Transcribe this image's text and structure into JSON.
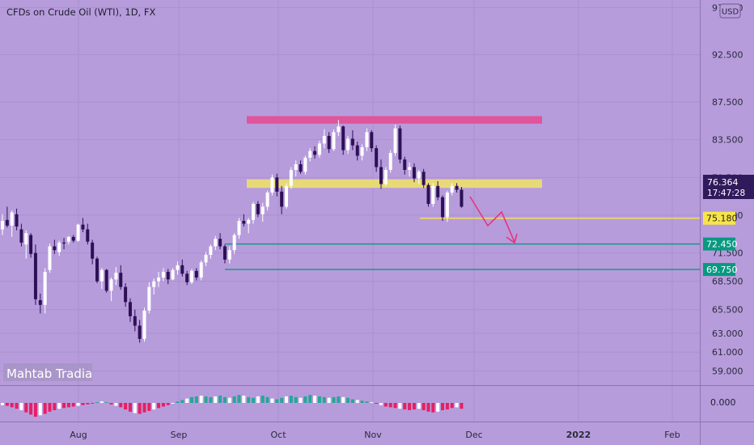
{
  "chart_data": {
    "type": "candlestick",
    "title": "CFDs on Crude Oil (WTI), 1D, FX",
    "currency": "USD",
    "watermark": "Mahtab Tradia",
    "ylim": [
      57.5,
      98.3
    ],
    "y_ticks": [
      "97.500",
      "92.500",
      "87.500",
      "83.500",
      "79.500",
      "75.500",
      "71.500",
      "68.500",
      "65.500",
      "63.000",
      "61.000",
      "59.000"
    ],
    "x_ticks": [
      "Aug",
      "Sep",
      "Oct",
      "Nov",
      "Dec",
      "2022",
      "Feb"
    ],
    "price_label": {
      "value": "76.364",
      "countdown": "17:47:28"
    },
    "levels": [
      {
        "value": "75.180",
        "color": "#f7e547"
      },
      {
        "value": "72.450",
        "color": "#089981"
      },
      {
        "value": "69.750",
        "color": "#089981"
      }
    ],
    "zones": [
      {
        "from": 85.2,
        "to": 86.0,
        "color": "#e0549a"
      },
      {
        "from": 78.4,
        "to": 79.3,
        "color": "#e8d978"
      }
    ],
    "candles": [
      [
        74.0,
        75.6,
        73.4,
        74.9
      ],
      [
        75.0,
        76.4,
        74.2,
        74.4
      ],
      [
        74.4,
        76.0,
        73.2,
        75.8
      ],
      [
        75.6,
        76.2,
        73.9,
        74.3
      ],
      [
        74.0,
        74.6,
        72.2,
        72.6
      ],
      [
        72.4,
        73.9,
        70.9,
        73.6
      ],
      [
        73.4,
        73.6,
        71.0,
        71.4
      ],
      [
        71.5,
        72.4,
        66.0,
        66.6
      ],
      [
        66.5,
        67.2,
        65.1,
        66.0
      ],
      [
        66.0,
        69.9,
        65.1,
        69.5
      ],
      [
        69.7,
        72.5,
        69.4,
        72.2
      ],
      [
        72.2,
        72.9,
        71.4,
        71.8
      ],
      [
        71.6,
        72.8,
        71.2,
        72.6
      ],
      [
        72.6,
        73.1,
        71.9,
        72.5
      ],
      [
        72.7,
        73.3,
        72.4,
        73.2
      ],
      [
        73.2,
        73.4,
        72.6,
        72.8
      ],
      [
        72.8,
        74.6,
        72.7,
        74.5
      ],
      [
        74.5,
        75.2,
        73.7,
        74.0
      ],
      [
        74.0,
        74.6,
        72.4,
        72.7
      ],
      [
        72.6,
        72.9,
        70.3,
        70.9
      ],
      [
        70.9,
        71.1,
        68.3,
        68.5
      ],
      [
        68.5,
        69.9,
        67.7,
        69.7
      ],
      [
        69.7,
        69.8,
        67.3,
        67.5
      ],
      [
        67.5,
        68.9,
        66.4,
        68.7
      ],
      [
        68.7,
        70.0,
        68.1,
        69.4
      ],
      [
        69.4,
        70.2,
        67.6,
        67.9
      ],
      [
        67.9,
        68.3,
        65.8,
        66.3
      ],
      [
        66.3,
        66.7,
        64.2,
        64.8
      ],
      [
        64.8,
        65.5,
        63.2,
        63.8
      ],
      [
        63.8,
        64.4,
        62.0,
        62.4
      ],
      [
        62.4,
        65.7,
        62.1,
        65.4
      ],
      [
        65.4,
        68.4,
        65.1,
        67.9
      ],
      [
        67.9,
        68.8,
        67.1,
        68.5
      ],
      [
        68.5,
        69.5,
        67.9,
        68.9
      ],
      [
        68.9,
        69.9,
        68.5,
        69.5
      ],
      [
        69.5,
        69.8,
        68.2,
        68.7
      ],
      [
        68.7,
        69.9,
        68.6,
        69.7
      ],
      [
        69.7,
        70.6,
        69.2,
        70.2
      ],
      [
        70.2,
        70.8,
        69.0,
        69.3
      ],
      [
        69.3,
        69.6,
        68.1,
        68.4
      ],
      [
        68.4,
        69.8,
        68.2,
        69.6
      ],
      [
        69.6,
        69.9,
        68.6,
        68.9
      ],
      [
        68.9,
        70.7,
        68.6,
        70.5
      ],
      [
        70.5,
        71.6,
        70.1,
        71.3
      ],
      [
        71.3,
        72.4,
        70.9,
        72.2
      ],
      [
        72.2,
        73.3,
        71.8,
        73.0
      ],
      [
        73.0,
        73.6,
        71.9,
        72.2
      ],
      [
        72.2,
        72.4,
        70.4,
        70.8
      ],
      [
        70.8,
        72.2,
        70.4,
        71.8
      ],
      [
        71.8,
        73.6,
        71.4,
        73.4
      ],
      [
        73.4,
        75.2,
        73.0,
        74.9
      ],
      [
        74.9,
        75.6,
        74.3,
        74.6
      ],
      [
        74.6,
        75.2,
        73.6,
        75.0
      ],
      [
        75.0,
        76.9,
        74.6,
        76.7
      ],
      [
        76.7,
        77.0,
        75.3,
        75.6
      ],
      [
        75.6,
        76.8,
        74.8,
        76.4
      ],
      [
        76.4,
        78.1,
        76.0,
        77.9
      ],
      [
        77.9,
        79.8,
        77.6,
        79.5
      ],
      [
        79.5,
        79.9,
        77.5,
        78.0
      ],
      [
        78.0,
        78.6,
        75.6,
        76.4
      ],
      [
        76.4,
        78.9,
        76.2,
        78.6
      ],
      [
        78.6,
        80.6,
        78.3,
        80.3
      ],
      [
        80.3,
        81.3,
        79.6,
        80.9
      ],
      [
        80.9,
        81.3,
        79.9,
        80.1
      ],
      [
        80.1,
        81.8,
        79.8,
        81.6
      ],
      [
        81.6,
        82.6,
        81.2,
        82.3
      ],
      [
        82.3,
        82.8,
        81.5,
        81.9
      ],
      [
        81.9,
        83.4,
        81.6,
        83.1
      ],
      [
        83.1,
        84.6,
        82.6,
        83.9
      ],
      [
        83.9,
        84.3,
        82.1,
        82.5
      ],
      [
        82.5,
        84.6,
        82.3,
        84.3
      ],
      [
        84.3,
        85.6,
        83.9,
        84.9
      ],
      [
        84.9,
        85.0,
        81.9,
        82.4
      ],
      [
        82.4,
        83.9,
        82.0,
        83.6
      ],
      [
        83.6,
        84.5,
        82.4,
        82.9
      ],
      [
        82.9,
        83.3,
        81.3,
        81.8
      ],
      [
        81.8,
        83.0,
        81.3,
        82.7
      ],
      [
        82.7,
        84.7,
        82.3,
        84.3
      ],
      [
        84.3,
        84.5,
        82.2,
        82.6
      ],
      [
        82.6,
        82.9,
        80.1,
        80.6
      ],
      [
        80.6,
        81.4,
        78.3,
        78.8
      ],
      [
        78.8,
        80.6,
        78.6,
        80.3
      ],
      [
        80.3,
        82.4,
        80.0,
        82.1
      ],
      [
        82.1,
        85.1,
        81.8,
        84.7
      ],
      [
        84.7,
        85.0,
        81.0,
        81.4
      ],
      [
        81.4,
        81.7,
        79.8,
        80.3
      ],
      [
        80.3,
        81.1,
        79.6,
        80.6
      ],
      [
        80.6,
        81.0,
        79.0,
        79.4
      ],
      [
        79.4,
        80.3,
        78.8,
        80.1
      ],
      [
        80.1,
        80.4,
        78.4,
        78.7
      ],
      [
        78.7,
        78.9,
        76.4,
        76.7
      ],
      [
        76.7,
        78.9,
        76.4,
        78.6
      ],
      [
        78.6,
        79.1,
        77.1,
        77.4
      ],
      [
        77.4,
        77.6,
        74.9,
        75.3
      ],
      [
        75.3,
        78.1,
        74.8,
        77.9
      ],
      [
        77.9,
        78.9,
        77.6,
        78.6
      ],
      [
        78.6,
        78.9,
        77.9,
        78.2
      ],
      [
        78.2,
        78.5,
        76.3,
        76.4
      ]
    ],
    "indicator": {
      "label": "0.000",
      "values": [
        -0.3,
        -0.4,
        -0.6,
        -0.8,
        -1.0,
        -1.3,
        -1.6,
        -1.9,
        -1.7,
        -1.5,
        -1.2,
        -1.0,
        -0.8,
        -0.7,
        -0.6,
        -0.5,
        -0.4,
        -0.3,
        -0.2,
        -0.1,
        0.1,
        0.2,
        0.1,
        -0.2,
        -0.4,
        -0.6,
        -0.9,
        -1.2,
        -1.4,
        -1.5,
        -1.3,
        -1.1,
        -0.9,
        -0.7,
        -0.5,
        -0.3,
        -0.1,
        0.2,
        0.4,
        0.6,
        0.8,
        0.9,
        1.0,
        0.9,
        0.8,
        0.9,
        1.0,
        0.8,
        0.7,
        0.9,
        1.1,
        1.0,
        0.8,
        0.7,
        0.9,
        1.0,
        0.8,
        0.6,
        0.5,
        0.7,
        0.9,
        1.0,
        0.8,
        0.7,
        0.9,
        1.1,
        1.0,
        0.9,
        0.8,
        0.7,
        0.8,
        0.9,
        0.8,
        0.7,
        0.5,
        0.4,
        0.3,
        0.2,
        0.1,
        -0.1,
        -0.3,
        -0.5,
        -0.6,
        -0.7,
        -0.8,
        -0.9,
        -1.0,
        -0.9,
        -0.8,
        -1.0,
        -1.2,
        -1.3,
        -1.2,
        -1.0,
        -0.9,
        -0.7,
        -0.6,
        -0.8
      ]
    }
  }
}
